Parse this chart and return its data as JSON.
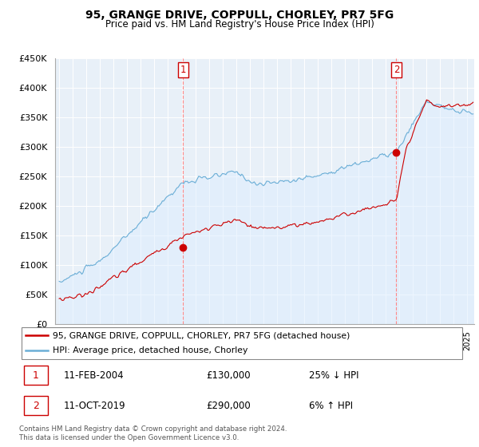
{
  "title": "95, GRANGE DRIVE, COPPULL, CHORLEY, PR7 5FG",
  "subtitle": "Price paid vs. HM Land Registry's House Price Index (HPI)",
  "footer": "Contains HM Land Registry data © Crown copyright and database right 2024.\nThis data is licensed under the Open Government Licence v3.0.",
  "legend_line1": "95, GRANGE DRIVE, COPPULL, CHORLEY, PR7 5FG (detached house)",
  "legend_line2": "HPI: Average price, detached house, Chorley",
  "sale1_date": "11-FEB-2004",
  "sale1_price": "£130,000",
  "sale1_hpi": "25% ↓ HPI",
  "sale2_date": "11-OCT-2019",
  "sale2_price": "£290,000",
  "sale2_hpi": "6% ↑ HPI",
  "hpi_color": "#6baed6",
  "hpi_fill_color": "#ddeeff",
  "price_color": "#cc0000",
  "vline_color": "#ff8888",
  "bg_color": "#e8f0f8",
  "ylim": [
    0,
    450000
  ],
  "yticks": [
    0,
    50000,
    100000,
    150000,
    200000,
    250000,
    300000,
    350000,
    400000,
    450000
  ],
  "ytick_labels": [
    "£0",
    "£50K",
    "£100K",
    "£150K",
    "£200K",
    "£250K",
    "£300K",
    "£350K",
    "£400K",
    "£450K"
  ],
  "sale1_x": 2004.1,
  "sale1_y": 130000,
  "sale2_x": 2019.78,
  "sale2_y": 290000,
  "xlim_left": 1994.7,
  "xlim_right": 2025.5
}
